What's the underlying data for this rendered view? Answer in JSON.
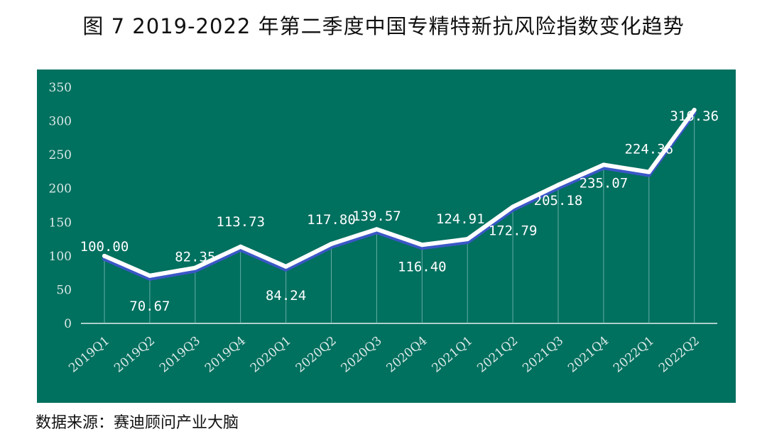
{
  "title": "图 7 2019-2022 年第二季度中国专精特新抗风险指数变化趋势",
  "source": "数据来源：赛迪顾问产业大脑",
  "colors": {
    "panel": "#00705f",
    "line": "#ffffff",
    "shadow": "#3b57c6",
    "drop": "#7fc0b6"
  },
  "chart_data": {
    "type": "line",
    "title": "图 7 2019-2022 年第二季度中国专精特新抗风险指数变化趋势",
    "xlabel": "",
    "ylabel": "",
    "categories": [
      "2019Q1",
      "2019Q2",
      "2019Q3",
      "2019Q4",
      "2020Q1",
      "2020Q2",
      "2020Q3",
      "2020Q4",
      "2021Q1",
      "2021Q2",
      "2021Q3",
      "2021Q4",
      "2022Q1",
      "2022Q2"
    ],
    "series": [
      {
        "name": "抗风险指数",
        "values": [
          100.0,
          70.67,
          82.35,
          113.73,
          84.24,
          117.8,
          139.57,
          116.4,
          124.91,
          172.79,
          205.18,
          235.07,
          224.36,
          316.36
        ]
      }
    ],
    "data_labels": [
      "100.00",
      "70.67",
      "82.35",
      "113.73",
      "84.24",
      "117.80",
      "139.57",
      "116.40",
      "124.91",
      "172.79",
      "205.18",
      "235.07",
      "224.36",
      "316.36"
    ],
    "yticks": [
      "0",
      "50",
      "100",
      "150",
      "200",
      "250",
      "300",
      "350"
    ],
    "ylim": [
      0,
      350
    ],
    "grid": false,
    "legend": "none"
  }
}
